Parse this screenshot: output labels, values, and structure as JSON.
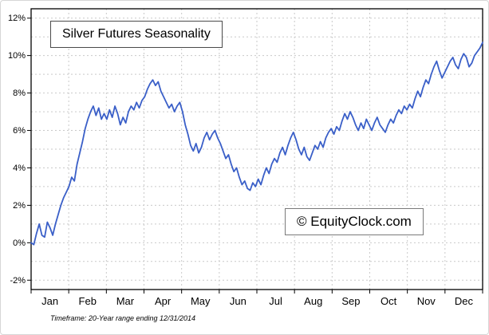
{
  "title": "Silver Futures Seasonality",
  "watermark": "© EquityClock.com",
  "footnote": "Timeframe: 20-Year range ending 12/31/2014",
  "chart_data": {
    "type": "line",
    "title": "Silver Futures Seasonality",
    "categories": [
      "Jan",
      "Feb",
      "Mar",
      "Apr",
      "May",
      "Jun",
      "Jul",
      "Aug",
      "Sep",
      "Oct",
      "Nov",
      "Dec"
    ],
    "y_ticks": [
      -2,
      0,
      2,
      4,
      6,
      8,
      10,
      12
    ],
    "y_tick_labels": [
      "-2%",
      "0%",
      "2%",
      "4%",
      "6%",
      "8%",
      "10%",
      "12%"
    ],
    "ylim": [
      -2.5,
      12.5
    ],
    "grid": true,
    "legend": "none",
    "line_color": "#3a5fc8",
    "grid_color": "#c9c9c9",
    "axis_color": "#000000",
    "points_per_month": 14,
    "values_percent": [
      0.0,
      -0.1,
      0.5,
      1.0,
      0.4,
      0.3,
      1.1,
      0.8,
      0.4,
      1.0,
      1.5,
      2.0,
      2.4,
      2.7,
      3.0,
      3.5,
      3.3,
      4.2,
      4.8,
      5.4,
      6.1,
      6.6,
      7.0,
      7.3,
      6.8,
      7.2,
      6.6,
      6.9,
      6.6,
      7.1,
      6.7,
      7.3,
      6.9,
      6.3,
      6.7,
      6.4,
      7.0,
      7.3,
      7.1,
      7.5,
      7.2,
      7.6,
      7.8,
      8.2,
      8.5,
      8.7,
      8.4,
      8.6,
      8.1,
      7.8,
      7.5,
      7.2,
      7.4,
      7.0,
      7.3,
      7.5,
      7.0,
      6.3,
      5.8,
      5.2,
      4.9,
      5.3,
      4.8,
      5.1,
      5.6,
      5.9,
      5.5,
      5.8,
      6.0,
      5.6,
      5.3,
      4.9,
      4.5,
      4.7,
      4.2,
      3.8,
      4.0,
      3.5,
      3.1,
      3.3,
      2.9,
      2.8,
      3.2,
      3.0,
      3.4,
      3.1,
      3.6,
      4.0,
      3.7,
      4.2,
      4.5,
      4.3,
      4.8,
      5.1,
      4.7,
      5.2,
      5.6,
      5.9,
      5.5,
      5.0,
      4.7,
      5.1,
      4.6,
      4.4,
      4.8,
      5.2,
      5.0,
      5.4,
      5.1,
      5.6,
      5.9,
      6.1,
      5.8,
      6.2,
      6.0,
      6.5,
      6.9,
      6.6,
      7.0,
      6.7,
      6.3,
      6.0,
      6.4,
      6.1,
      6.6,
      6.3,
      6.0,
      6.4,
      6.7,
      6.3,
      6.1,
      5.9,
      6.3,
      6.6,
      6.4,
      6.8,
      7.1,
      6.9,
      7.3,
      7.1,
      7.4,
      7.2,
      7.7,
      8.1,
      7.8,
      8.3,
      8.7,
      8.5,
      9.0,
      9.4,
      9.7,
      9.2,
      8.8,
      9.1,
      9.4,
      9.7,
      9.9,
      9.5,
      9.3,
      9.8,
      10.1,
      9.9,
      9.4,
      9.6,
      10.0,
      10.2,
      10.4,
      10.7
    ]
  }
}
